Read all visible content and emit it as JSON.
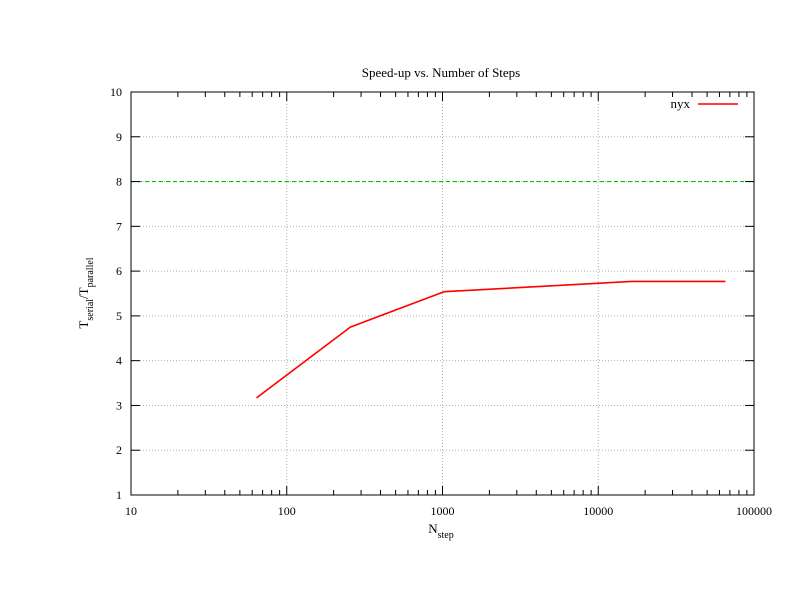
{
  "chart_data": {
    "type": "line",
    "title": "Speed-up vs. Number of Steps",
    "xlabel": {
      "main": "N",
      "sub": "step"
    },
    "ylabel": {
      "main1": "T",
      "sub1": "serial",
      "sep": "/T",
      "sub2": "parallel"
    },
    "xscale": "log",
    "xlim": [
      10,
      100000
    ],
    "ylim": [
      1,
      10
    ],
    "xticks": [
      10,
      100,
      1000,
      10000,
      100000
    ],
    "xtick_labels": [
      "10",
      "100",
      "1000",
      "10000",
      "100000"
    ],
    "yticks": [
      1,
      2,
      3,
      4,
      5,
      6,
      7,
      8,
      9,
      10
    ],
    "ytick_labels": [
      "1",
      "2",
      "3",
      "4",
      "5",
      "6",
      "7",
      "8",
      "9",
      "10"
    ],
    "grid": true,
    "legend_position": "top-right",
    "series": [
      {
        "name": "nyx",
        "color": "#ff0000",
        "x": [
          64,
          256,
          1024,
          16384,
          65536
        ],
        "y": [
          3.17,
          4.75,
          5.54,
          5.77,
          5.77
        ]
      }
    ],
    "reference_lines": [
      {
        "y": 8,
        "color": "#00c800",
        "style": "dashed"
      }
    ]
  }
}
